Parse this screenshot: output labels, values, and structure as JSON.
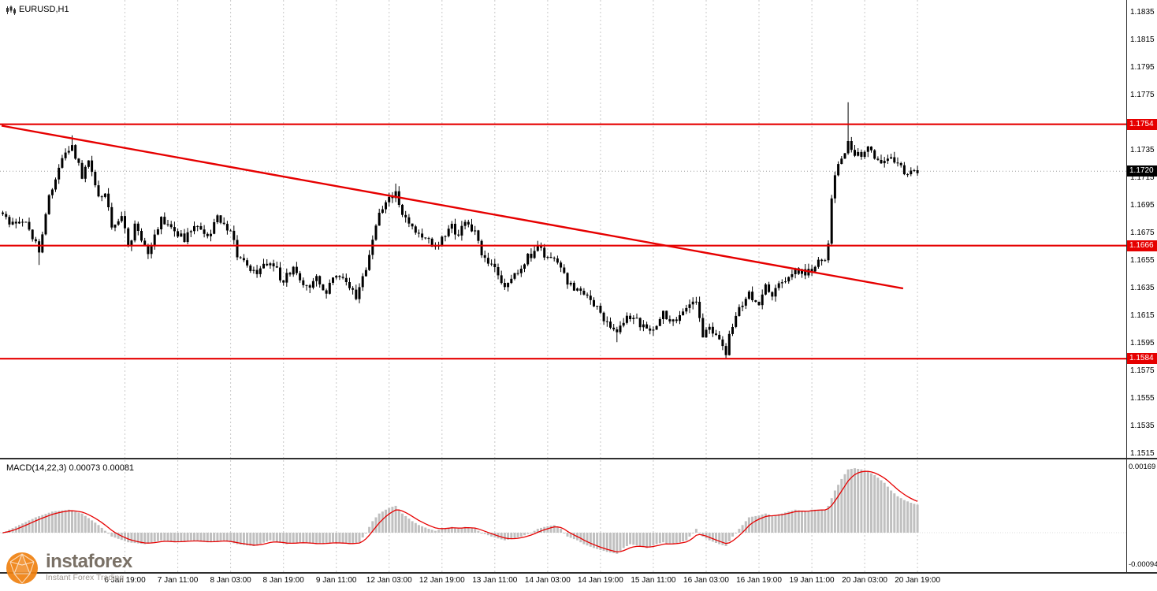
{
  "window": {
    "symbol_label": "EURUSD,H1"
  },
  "indicator": {
    "label": "MACD(14,22,3) 0.00073 0.00081"
  },
  "watermark": {
    "brand": "instaforex",
    "tagline": "Instant Forex Trading"
  },
  "colors": {
    "red": "#e60000",
    "candle": "#000000",
    "macd_bar": "#c0c0c0",
    "grid": "#c9c9c9",
    "watermark_orange": "#ef8110",
    "watermark_text": "#6f655a",
    "badge_text": "#ffffff"
  },
  "chart_data": {
    "type": "candlestick_with_macd",
    "symbol": "EURUSD",
    "timeframe": "H1",
    "price_axis": {
      "top_price": 1.1835,
      "bottom_price": 1.1515,
      "current_price": 1.172,
      "ticks": [
        "1.1835",
        "1.1815",
        "1.1795",
        "1.1775",
        "1.1735",
        "1.1715",
        "1.1695",
        "1.1675",
        "1.1655",
        "1.1635",
        "1.1615",
        "1.1595",
        "1.1575",
        "1.1555",
        "1.1535",
        "1.1515"
      ],
      "badges": [
        {
          "text": "1.1754",
          "price": 1.1754,
          "type": "red"
        },
        {
          "text": "1.1720",
          "price": 1.172,
          "type": "black"
        },
        {
          "text": "1.1666",
          "price": 1.1666,
          "type": "red"
        },
        {
          "text": "1.1584",
          "price": 1.1584,
          "type": "red"
        }
      ]
    },
    "h_lines": [
      {
        "price": 1.1754
      },
      {
        "price": 1.1666
      },
      {
        "price": 1.1584
      }
    ],
    "trendline": {
      "i1": 0,
      "p1": 1.1753,
      "i2": 273,
      "p2": 1.1635
    },
    "time_axis": {
      "labels": [
        {
          "i": 37,
          "text": "6 Jan 19:00"
        },
        {
          "i": 53,
          "text": "7 Jan 11:00"
        },
        {
          "i": 69,
          "text": "8 Jan 03:00"
        },
        {
          "i": 85,
          "text": "8 Jan 19:00"
        },
        {
          "i": 101,
          "text": "9 Jan 11:00"
        },
        {
          "i": 117,
          "text": "12 Jan 03:00"
        },
        {
          "i": 133,
          "text": "12 Jan 19:00"
        },
        {
          "i": 149,
          "text": "13 Jan 11:00"
        },
        {
          "i": 165,
          "text": "14 Jan 03:00"
        },
        {
          "i": 181,
          "text": "14 Jan 19:00"
        },
        {
          "i": 197,
          "text": "15 Jan 11:00"
        },
        {
          "i": 213,
          "text": "16 Jan 03:00"
        },
        {
          "i": 229,
          "text": "16 Jan 19:00"
        },
        {
          "i": 245,
          "text": "19 Jan 11:00"
        },
        {
          "i": 261,
          "text": "20 Jan 03:00"
        },
        {
          "i": 277,
          "text": "20 Jan 19:00"
        }
      ]
    },
    "candles": {
      "count": 278,
      "waypoints": [
        [
          0,
          1.169
        ],
        [
          2,
          1.168
        ],
        [
          7,
          1.1685
        ],
        [
          11,
          1.1662
        ],
        [
          14,
          1.17
        ],
        [
          18,
          1.1728
        ],
        [
          21,
          1.174
        ],
        [
          24,
          1.1715
        ],
        [
          26,
          1.173
        ],
        [
          29,
          1.17
        ],
        [
          31,
          1.1705
        ],
        [
          33,
          1.168
        ],
        [
          36,
          1.169
        ],
        [
          38,
          1.1665
        ],
        [
          40,
          1.168
        ],
        [
          44,
          1.166
        ],
        [
          48,
          1.1685
        ],
        [
          51,
          1.168
        ],
        [
          55,
          1.167
        ],
        [
          58,
          1.168
        ],
        [
          62,
          1.1672
        ],
        [
          65,
          1.1685
        ],
        [
          69,
          1.1678
        ],
        [
          71,
          1.166
        ],
        [
          74,
          1.165
        ],
        [
          77,
          1.1645
        ],
        [
          81,
          1.1655
        ],
        [
          85,
          1.164
        ],
        [
          88,
          1.165
        ],
        [
          92,
          1.1635
        ],
        [
          95,
          1.1645
        ],
        [
          98,
          1.163
        ],
        [
          100,
          1.1645
        ],
        [
          104,
          1.164
        ],
        [
          107,
          1.1628
        ],
        [
          110,
          1.165
        ],
        [
          112,
          1.167
        ],
        [
          114,
          1.169
        ],
        [
          117,
          1.17
        ],
        [
          119,
          1.1706
        ],
        [
          121,
          1.169
        ],
        [
          124,
          1.168
        ],
        [
          126,
          1.1675
        ],
        [
          129,
          1.167
        ],
        [
          131,
          1.1664
        ],
        [
          133,
          1.167
        ],
        [
          136,
          1.168
        ],
        [
          138,
          1.1674
        ],
        [
          140,
          1.1686
        ],
        [
          143,
          1.1675
        ],
        [
          145,
          1.166
        ],
        [
          148,
          1.165
        ],
        [
          150,
          1.1645
        ],
        [
          152,
          1.1638
        ],
        [
          155,
          1.1645
        ],
        [
          157,
          1.1652
        ],
        [
          160,
          1.166
        ],
        [
          162,
          1.1665
        ],
        [
          164,
          1.166
        ],
        [
          167,
          1.1655
        ],
        [
          169,
          1.1648
        ],
        [
          171,
          1.164
        ],
        [
          174,
          1.1634
        ],
        [
          176,
          1.163
        ],
        [
          179,
          1.1624
        ],
        [
          181,
          1.1618
        ],
        [
          183,
          1.1608
        ],
        [
          186,
          1.1603
        ],
        [
          188,
          1.161
        ],
        [
          190,
          1.1615
        ],
        [
          193,
          1.1609
        ],
        [
          195,
          1.1604
        ],
        [
          198,
          1.161
        ],
        [
          200,
          1.1616
        ],
        [
          202,
          1.161
        ],
        [
          205,
          1.1616
        ],
        [
          207,
          1.162
        ],
        [
          210,
          1.1626
        ],
        [
          212,
          1.16
        ],
        [
          214,
          1.1606
        ],
        [
          217,
          1.1596
        ],
        [
          219,
          1.1589
        ],
        [
          221,
          1.161
        ],
        [
          224,
          1.1625
        ],
        [
          226,
          1.1631
        ],
        [
          229,
          1.1624
        ],
        [
          231,
          1.1636
        ],
        [
          233,
          1.163
        ],
        [
          236,
          1.164
        ],
        [
          238,
          1.1646
        ],
        [
          240,
          1.165
        ],
        [
          243,
          1.1645
        ],
        [
          245,
          1.165
        ],
        [
          249,
          1.1656
        ],
        [
          250,
          1.1668
        ],
        [
          251,
          1.1698
        ],
        [
          252,
          1.1718
        ],
        [
          254,
          1.1728
        ],
        [
          255,
          1.1734
        ],
        [
          256,
          1.1742
        ],
        [
          257,
          1.1736
        ],
        [
          260,
          1.173
        ],
        [
          262,
          1.1737
        ],
        [
          264,
          1.1731
        ],
        [
          267,
          1.1726
        ],
        [
          269,
          1.1732
        ],
        [
          271,
          1.1726
        ],
        [
          274,
          1.1716
        ],
        [
          276,
          1.172
        ],
        [
          277,
          1.1719
        ]
      ],
      "special_wicks": {
        "11": {
          "low": 1.1652
        },
        "21": {
          "high": 1.1746
        },
        "119": {
          "high": 1.1711
        },
        "186": {
          "low": 1.1596
        },
        "219": {
          "low": 1.1584
        },
        "256": {
          "high": 1.177
        }
      }
    },
    "macd": {
      "current_macd": "0.00073",
      "current_signal": "0.00081",
      "max_label": "0.00169",
      "min_label": "-0.00094",
      "waypoints": [
        [
          0,
          0.0
        ],
        [
          5,
          0.0002
        ],
        [
          10,
          0.0004
        ],
        [
          15,
          0.00055
        ],
        [
          20,
          0.0006
        ],
        [
          24,
          0.0005
        ],
        [
          29,
          0.0002
        ],
        [
          33,
          -0.0001
        ],
        [
          38,
          -0.00025
        ],
        [
          43,
          -0.0003
        ],
        [
          48,
          -0.0002
        ],
        [
          52,
          -0.00025
        ],
        [
          57,
          -0.0002
        ],
        [
          62,
          -0.00025
        ],
        [
          67,
          -0.0002
        ],
        [
          71,
          -0.0003
        ],
        [
          76,
          -0.00035
        ],
        [
          81,
          -0.0002
        ],
        [
          86,
          -0.0003
        ],
        [
          90,
          -0.00025
        ],
        [
          95,
          -0.0003
        ],
        [
          100,
          -0.00025
        ],
        [
          105,
          -0.0003
        ],
        [
          108,
          -0.00025
        ],
        [
          110,
          0.0
        ],
        [
          112,
          0.0003
        ],
        [
          114,
          0.0005
        ],
        [
          117,
          0.00065
        ],
        [
          119,
          0.0007
        ],
        [
          121,
          0.0005
        ],
        [
          124,
          0.0003
        ],
        [
          126,
          0.0002
        ],
        [
          129,
          0.0001
        ],
        [
          131,
          5e-05
        ],
        [
          133,
          0.0001
        ],
        [
          136,
          0.00015
        ],
        [
          138,
          0.0001
        ],
        [
          140,
          0.00015
        ],
        [
          143,
          0.0001
        ],
        [
          145,
          0.0
        ],
        [
          148,
          -0.0001
        ],
        [
          150,
          -0.00015
        ],
        [
          152,
          -0.0002
        ],
        [
          155,
          -0.00015
        ],
        [
          157,
          -0.0001
        ],
        [
          160,
          0.0
        ],
        [
          162,
          0.0001
        ],
        [
          164,
          0.00015
        ],
        [
          167,
          0.0002
        ],
        [
          169,
          0.0001
        ],
        [
          171,
          -0.0001
        ],
        [
          174,
          -0.0002
        ],
        [
          176,
          -0.0003
        ],
        [
          179,
          -0.0004
        ],
        [
          181,
          -0.00045
        ],
        [
          183,
          -0.0005
        ],
        [
          186,
          -0.00055
        ],
        [
          188,
          -0.0004
        ],
        [
          190,
          -0.0003
        ],
        [
          193,
          -0.00035
        ],
        [
          195,
          -0.0004
        ],
        [
          198,
          -0.0003
        ],
        [
          200,
          -0.00025
        ],
        [
          202,
          -0.0003
        ],
        [
          205,
          -0.00025
        ],
        [
          207,
          -0.0002
        ],
        [
          210,
          0.0001
        ],
        [
          212,
          -0.0001
        ],
        [
          214,
          -0.0002
        ],
        [
          217,
          -0.0003
        ],
        [
          219,
          -0.00035
        ],
        [
          221,
          -0.0001
        ],
        [
          224,
          0.0002
        ],
        [
          226,
          0.0004
        ],
        [
          229,
          0.00045
        ],
        [
          231,
          0.0005
        ],
        [
          233,
          0.00045
        ],
        [
          236,
          0.0005
        ],
        [
          238,
          0.00055
        ],
        [
          240,
          0.0006
        ],
        [
          243,
          0.00055
        ],
        [
          245,
          0.0006
        ],
        [
          249,
          0.0006
        ],
        [
          250,
          0.0007
        ],
        [
          252,
          0.0011
        ],
        [
          254,
          0.0014
        ],
        [
          256,
          0.00165
        ],
        [
          258,
          0.00168
        ],
        [
          260,
          0.00165
        ],
        [
          262,
          0.0016
        ],
        [
          264,
          0.0015
        ],
        [
          267,
          0.0013
        ],
        [
          269,
          0.0011
        ],
        [
          271,
          0.00095
        ],
        [
          273,
          0.00085
        ],
        [
          275,
          0.00078
        ],
        [
          277,
          0.00073
        ]
      ]
    }
  }
}
